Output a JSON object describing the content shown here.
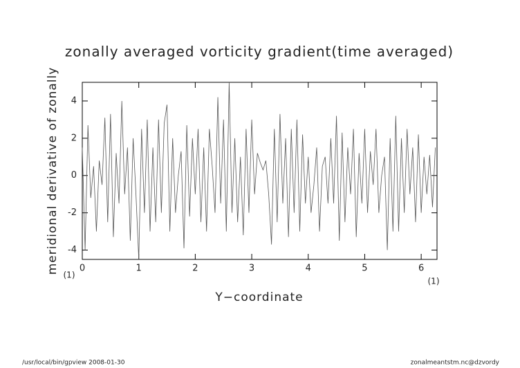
{
  "chart_data": {
    "type": "line",
    "title": "zonally averaged vorticity gradient(time averaged)",
    "x_label": "Y−coordinate",
    "y_label": "meridional derivative of zonally",
    "x_unit": "(1)",
    "y_unit": "(1)",
    "footer_left": "/usr/local/bin/gpview   2008-01-30",
    "footer_right": "zonalmeantstm.nc@dzvordy",
    "color": "#555555",
    "xlim": [
      0,
      6.28
    ],
    "ylim": [
      -4.5,
      5
    ],
    "xticks": [
      0,
      1,
      2,
      3,
      4,
      5,
      6
    ],
    "yticks": [
      -4,
      -2,
      0,
      2,
      4
    ],
    "x": [
      0,
      0.05,
      0.1,
      0.15,
      0.2,
      0.25,
      0.3,
      0.35,
      0.4,
      0.45,
      0.5,
      0.55,
      0.6,
      0.65,
      0.7,
      0.75,
      0.8,
      0.85,
      0.9,
      0.95,
      1,
      1.05,
      1.1,
      1.15,
      1.2,
      1.25,
      1.3,
      1.35,
      1.4,
      1.45,
      1.5,
      1.55,
      1.6,
      1.65,
      1.7,
      1.75,
      1.8,
      1.85,
      1.9,
      1.95,
      2,
      2.05,
      2.1,
      2.15,
      2.2,
      2.25,
      2.3,
      2.35,
      2.4,
      2.45,
      2.5,
      2.55,
      2.6,
      2.65,
      2.7,
      2.75,
      2.8,
      2.85,
      2.9,
      2.95,
      3,
      3.05,
      3.1,
      3.15,
      3.2,
      3.25,
      3.3,
      3.35,
      3.4,
      3.45,
      3.5,
      3.55,
      3.6,
      3.65,
      3.7,
      3.75,
      3.8,
      3.85,
      3.9,
      3.95,
      4,
      4.05,
      4.1,
      4.15,
      4.2,
      4.25,
      4.3,
      4.35,
      4.4,
      4.45,
      4.5,
      4.55,
      4.6,
      4.65,
      4.7,
      4.75,
      4.8,
      4.85,
      4.9,
      4.95,
      5,
      5.05,
      5.1,
      5.15,
      5.2,
      5.25,
      5.3,
      5.35,
      5.4,
      5.45,
      5.5,
      5.55,
      5.6,
      5.65,
      5.7,
      5.75,
      5.8,
      5.85,
      5.9,
      5.95,
      6,
      6.05,
      6.1,
      6.15,
      6.2,
      6.25
    ],
    "values": [
      1.5,
      -4,
      2.7,
      -1.2,
      0.5,
      -3,
      0.8,
      -0.5,
      3.1,
      -2.5,
      3.3,
      -3.3,
      1.2,
      -1.5,
      4,
      -1,
      1.5,
      -3.5,
      2,
      -1,
      -4.5,
      2.5,
      -2,
      3,
      -3,
      1.5,
      -2.5,
      3,
      -2,
      2.8,
      3.8,
      -3,
      2,
      -2,
      0,
      1.3,
      -3.9,
      2.7,
      -2.2,
      2,
      -1,
      2.5,
      -2.5,
      1.5,
      -3,
      2.5,
      0.5,
      -2,
      4.2,
      -1.5,
      3,
      -3,
      5,
      -2,
      2,
      -2.5,
      1,
      -3.2,
      2.5,
      -2,
      3,
      -1,
      1.2,
      0.7,
      0.3,
      0.8,
      -1,
      -3.7,
      2.5,
      -2.5,
      3.3,
      -1.5,
      2,
      -3.3,
      2.5,
      -2,
      3,
      -3,
      2.2,
      -1.5,
      1,
      -2,
      -0.5,
      1.5,
      -3,
      0.5,
      1,
      -1.5,
      2,
      -1.5,
      3.2,
      -3.5,
      2.3,
      -2.5,
      1.5,
      -1,
      2.5,
      -3.3,
      1.2,
      -1.5,
      2.5,
      -2,
      1.3,
      -0.5,
      2.5,
      -2,
      0,
      1,
      -4,
      2,
      -3,
      3.2,
      -3,
      2,
      -2,
      2.5,
      -1,
      1.5,
      -2.5,
      2.2,
      -2,
      1,
      -1,
      1.1,
      -1.7,
      1.5
    ]
  }
}
